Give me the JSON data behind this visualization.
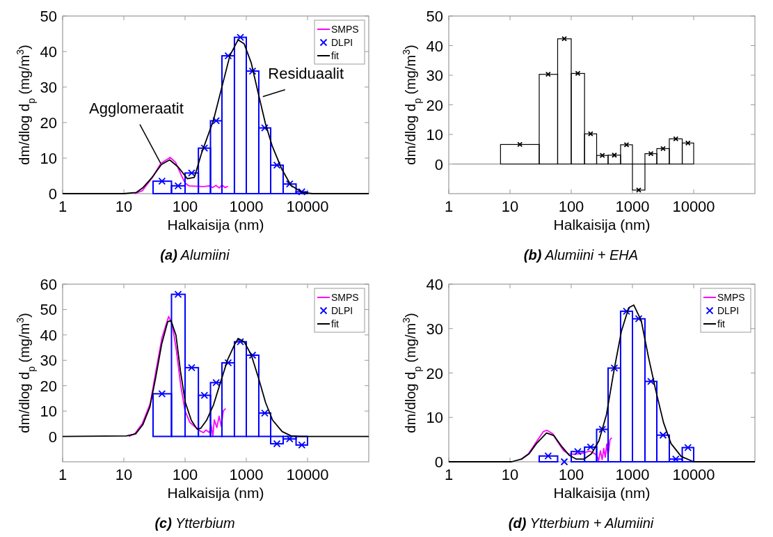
{
  "chart_data": [
    {
      "type": "line",
      "title": "(a) Alumiini",
      "xlabel": "Halkaisija (nm)",
      "ylabel": "dm/dlog d$_{p}$ (mg/m$^{3}$)",
      "log": "x",
      "xlim": [
        1,
        100000
      ],
      "xticks": [
        1,
        10,
        100,
        1000,
        10000
      ],
      "ylim": [
        0,
        50
      ],
      "yticks": [
        0,
        10,
        20,
        30,
        40,
        50
      ],
      "legend": "top right",
      "annotations": [
        {
          "text": "Agglomeraatit",
          "x": 40,
          "y": 8.5
        },
        {
          "text": "Residuaalit",
          "x": 1860,
          "y": 27.3
        }
      ],
      "series": [
        {
          "name": "SMPS",
          "color": "#ff00ff",
          "x": [
            15,
            20,
            30,
            40,
            57,
            70,
            85,
            100,
            115,
            150,
            200,
            250,
            280,
            320,
            360,
            400,
            450,
            500
          ],
          "values": [
            0,
            0.8,
            4.8,
            8.5,
            10.2,
            8.8,
            5.5,
            3,
            2.2,
            2.1,
            2.0,
            2.2,
            1.7,
            2.3,
            1.6,
            2.4,
            1.7,
            2.1
          ]
        },
        {
          "type": "histogram",
          "color": "#0000ff",
          "bins": [
            30,
            60,
            100,
            165,
            260,
            400,
            640,
            1000,
            1600,
            2500,
            4000,
            6500,
            10000
          ],
          "values": [
            3.5,
            2.2,
            5.8,
            12.8,
            20.5,
            38.8,
            44,
            34.5,
            18.5,
            8,
            2.7,
            0.5
          ]
        },
        {
          "name": "DLPI",
          "type": "scatter",
          "color": "#0000ff",
          "marker": "cross",
          "x": [
            42,
            77,
            128,
            207,
            322,
            506,
            800,
            1265,
            2000,
            3160,
            5100,
            8060
          ],
          "values": [
            3.5,
            2.2,
            5.8,
            12.8,
            20.5,
            38.8,
            44,
            34.5,
            18.5,
            8,
            2.7,
            0.5
          ]
        },
        {
          "name": "fit",
          "color": "#000000",
          "x": [
            1,
            10,
            15.9,
            20.3,
            29,
            41,
            56,
            77,
            109,
            142,
            186,
            290,
            413,
            540,
            735,
            920,
            1200,
            1560,
            2040,
            2650,
            3800,
            5360,
            8300,
            12000,
            100000
          ],
          "values": [
            0,
            0,
            0.3,
            1.6,
            4.6,
            8.2,
            9.5,
            7.5,
            4.2,
            4.6,
            11.4,
            20.6,
            31,
            38.9,
            43.3,
            42.2,
            36.9,
            28.4,
            19.9,
            13.4,
            6.9,
            2.3,
            0.3,
            0,
            0
          ]
        }
      ]
    },
    {
      "type": "histogram",
      "title": "(b) Alumiini + EHA",
      "xlabel": "Halkaisija (nm)",
      "ylabel": "dm/dlog d$_{p}$ (mg/m$^{3}$)",
      "log": "x",
      "xlim": [
        1,
        100000
      ],
      "xticks": [
        1,
        10,
        100,
        1000,
        10000
      ],
      "ylim": [
        -10,
        50
      ],
      "yticks": [
        0,
        10,
        20,
        30,
        40,
        50
      ],
      "ref_lines": [
        {
          "axis": "y",
          "value": 0,
          "color": "#808080"
        }
      ],
      "series": [
        {
          "color": "#000000",
          "bins": [
            7,
            30,
            60,
            100,
            165,
            260,
            400,
            640,
            1000,
            1600,
            2500,
            4000,
            6500,
            10000
          ],
          "values": [
            6.6,
            30.3,
            42.3,
            30.6,
            10.2,
            2.9,
            3.0,
            6.5,
            -8.8,
            3.5,
            5.2,
            8.5,
            7.1
          ]
        },
        {
          "type": "scatter",
          "color": "#000000",
          "marker": "cross",
          "x": [
            14.5,
            42,
            77,
            128,
            207,
            322,
            506,
            800,
            1265,
            2000,
            3160,
            5100,
            8060
          ],
          "values": [
            6.6,
            30.3,
            42.3,
            30.6,
            10.2,
            2.9,
            3.0,
            6.5,
            -8.8,
            3.5,
            5.2,
            8.5,
            7.1
          ]
        }
      ]
    },
    {
      "type": "line",
      "title": "(c) Ytterbium",
      "xlabel": "Halkaisija (nm)",
      "ylabel": "dm/dlog d$_{p}$ (mg/m$^{3}$)",
      "log": "x",
      "xlim": [
        1,
        100000
      ],
      "xticks": [
        1,
        10,
        100,
        1000,
        10000
      ],
      "ylim": [
        -10,
        60
      ],
      "yticks": [
        0,
        10,
        20,
        30,
        40,
        50,
        60
      ],
      "legend": "top right",
      "series": [
        {
          "name": "SMPS",
          "color": "#ff00ff",
          "x": [
            12,
            15,
            20,
            27,
            33,
            42,
            54,
            62,
            72,
            85,
            100,
            120,
            150,
            180,
            200,
            220,
            250,
            265,
            285,
            300,
            330,
            360,
            390,
            420,
            460
          ],
          "values": [
            0,
            1,
            5,
            13,
            25,
            39,
            47.3,
            44,
            34,
            20,
            10,
            5.5,
            3.5,
            2.0,
            1.5,
            2.5,
            1.5,
            4.5,
            0.2,
            6.5,
            3.5,
            8,
            4,
            10,
            11
          ]
        },
        {
          "type": "histogram",
          "color": "#0000ff",
          "bins": [
            30,
            60,
            100,
            165,
            260,
            400,
            640,
            1000,
            1600,
            2500,
            4000,
            6500,
            10000
          ],
          "values": [
            16.8,
            56,
            27.1,
            16.2,
            21.2,
            29.0,
            37.3,
            32,
            9.2,
            -2.9,
            -1,
            -3.4
          ]
        },
        {
          "name": "DLPI",
          "type": "scatter",
          "color": "#0000ff",
          "marker": "cross",
          "x": [
            42,
            77,
            128,
            207,
            322,
            506,
            800,
            1265,
            2000,
            3160,
            5100,
            8060
          ],
          "values": [
            16.8,
            56,
            27.1,
            16.2,
            21.2,
            29.0,
            37.3,
            32,
            9.2,
            -2.9,
            -1,
            -3.4
          ]
        },
        {
          "name": "fit",
          "color": "#000000",
          "x": [
            1,
            11,
            15.6,
            20.4,
            26.6,
            33,
            41.5,
            52,
            59,
            71,
            84,
            101,
            126,
            158,
            180,
            225,
            292,
            380,
            495,
            650,
            740,
            930,
            1210,
            1580,
            2060,
            2690,
            3850,
            5400,
            7700,
            100000
          ],
          "values": [
            0,
            0.2,
            1,
            4.6,
            11.6,
            23,
            36.4,
            45.2,
            45.6,
            39.9,
            25.8,
            13.4,
            6.4,
            2.8,
            3.2,
            6.4,
            12.5,
            21.4,
            30.2,
            36.4,
            38.6,
            37.2,
            32,
            23.1,
            13.4,
            6.4,
            1.9,
            0.2,
            0,
            0
          ]
        }
      ]
    },
    {
      "type": "line",
      "title": "(d) Ytterbium + Alumiini",
      "xlabel": "Halkaisija (nm)",
      "ylabel": "dm/dlog d$_{p}$ (mg/m$^{3}$)",
      "log": "x",
      "xlim": [
        1,
        100000
      ],
      "xticks": [
        1,
        10,
        100,
        1000,
        10000
      ],
      "ylim": [
        0,
        40
      ],
      "yticks": [
        0,
        10,
        20,
        30,
        40
      ],
      "legend": "top right",
      "series": [
        {
          "name": "SMPS",
          "color": "#ff00ff",
          "x": [
            15,
            20,
            27,
            35,
            40,
            50,
            60,
            75,
            90,
            110,
            130,
            160,
            200,
            230,
            260,
            280,
            300,
            320,
            340,
            360,
            380,
            400,
            430,
            460
          ],
          "values": [
            0.5,
            1.8,
            4.5,
            6.8,
            7.1,
            6.3,
            4.5,
            2.5,
            1.8,
            1.7,
            1.8,
            2.0,
            2.4,
            2.0,
            1.5,
            0.3,
            2.5,
            0.5,
            3,
            1,
            4,
            1.5,
            5,
            5.4
          ]
        },
        {
          "type": "histogram",
          "color": "#0000ff",
          "bins": [
            30,
            60,
            100,
            165,
            260,
            400,
            640,
            1000,
            1600,
            2500,
            4000,
            6500,
            10000
          ],
          "values": [
            1.3,
            0,
            2.3,
            3.3,
            7.3,
            21.1,
            33.9,
            32.2,
            18.1,
            6.0,
            0.6,
            3.2
          ]
        },
        {
          "name": "DLPI",
          "type": "scatter",
          "color": "#0000ff",
          "marker": "cross",
          "x": [
            42,
            77,
            128,
            207,
            322,
            506,
            800,
            1265,
            2000,
            3160,
            5100,
            8060
          ],
          "values": [
            1.3,
            0,
            2.3,
            3.3,
            7.3,
            21.1,
            33.9,
            32.2,
            18.1,
            6.0,
            0.6,
            3.2
          ]
        },
        {
          "name": "fit",
          "color": "#000000",
          "x": [
            1,
            10.6,
            15.4,
            20.5,
            27,
            39.5,
            52,
            69.5,
            92,
            121,
            161,
            214,
            283,
            376,
            500,
            660,
            870,
            1050,
            1390,
            1830,
            2420,
            3220,
            4270,
            6260,
            10000,
            100000
          ],
          "values": [
            0,
            0,
            0.6,
            1.8,
            4.1,
            6.5,
            5.9,
            3.5,
            1.5,
            0.6,
            0.6,
            1.8,
            4.7,
            10.6,
            20.6,
            29.4,
            34.7,
            35.3,
            31.8,
            23.5,
            15.9,
            8.8,
            4.1,
            1.2,
            0,
            0
          ]
        }
      ]
    }
  ]
}
